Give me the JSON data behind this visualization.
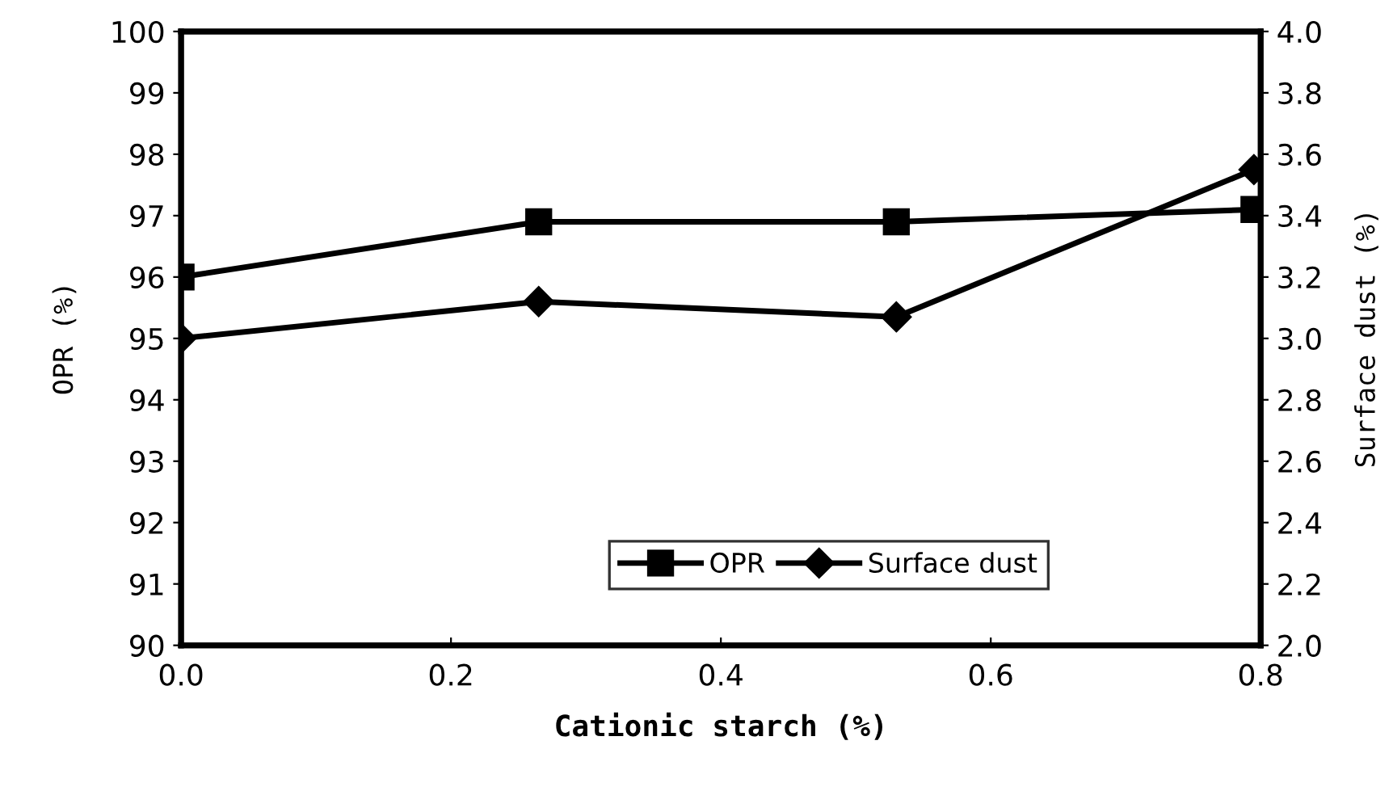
{
  "chart_data": {
    "type": "line",
    "xlabel": "Cationic starch (%)",
    "ylabel": "OPR (%)",
    "y2label": "Surface dust (%)",
    "x": [
      0.0,
      0.265,
      0.53,
      0.795
    ],
    "series": [
      {
        "name": "OPR",
        "color": "#000000",
        "marker": "square",
        "values": [
          96.0,
          96.9,
          96.9,
          97.1
        ]
      },
      {
        "name": "Surface dust",
        "color": "#000000",
        "marker": "diamond",
        "axis": "y2",
        "values": [
          3.0,
          3.12,
          3.07,
          3.55
        ]
      }
    ],
    "xlim": [
      0.0,
      0.8
    ],
    "xticks": [
      {
        "value": 0.0,
        "label": "0.0"
      },
      0.2,
      0.4,
      0.6,
      0.8
    ],
    "ylim": [
      90,
      100
    ],
    "yticks": [
      90,
      91,
      92,
      93,
      94,
      95,
      96,
      97,
      98,
      99,
      100
    ],
    "y2lim": [
      2.0,
      4.0
    ],
    "y2ticks": [
      {
        "value": 2.0,
        "label": "2.0"
      },
      2.2,
      2.4,
      2.6,
      2.8,
      {
        "value": 3.0,
        "label": "3.0"
      },
      3.2,
      3.4,
      3.6,
      3.8,
      {
        "value": 4.0,
        "label": "4.0"
      }
    ],
    "legend": "bottom",
    "grid": false,
    "line_style": "solid"
  }
}
